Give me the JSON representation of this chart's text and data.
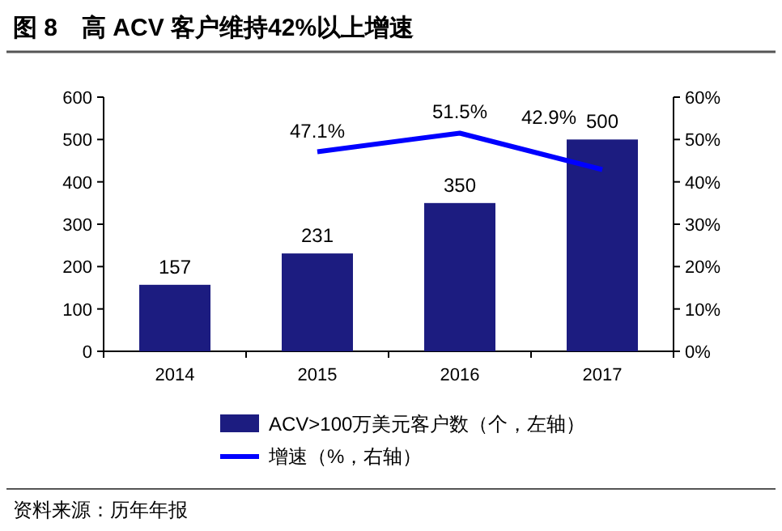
{
  "chart_data": {
    "type": "bar",
    "title": "图 8　高 ACV 客户维持42%以上增速",
    "categories": [
      "2014",
      "2015",
      "2016",
      "2017"
    ],
    "series": [
      {
        "name": "ACV>100万美元客户数（个，左轴）",
        "color": "#1c1c80",
        "values": [
          157,
          231,
          350,
          500
        ],
        "value_labels": [
          "157",
          "231",
          "350",
          "500"
        ]
      },
      {
        "name": "增速（%，右轴）",
        "type": "line",
        "axis": "y2",
        "color": "#0000ff",
        "values": [
          null,
          47.1,
          51.5,
          42.9
        ],
        "value_labels": [
          null,
          "47.1%",
          "51.5%",
          "42.9%"
        ]
      }
    ],
    "ylim": [
      0,
      600
    ],
    "yticks": [
      0,
      100,
      200,
      300,
      400,
      500,
      600
    ],
    "y2lim": [
      0,
      60
    ],
    "y2ticks": [
      {
        "value": 0,
        "label": "0%"
      },
      {
        "value": 10,
        "label": "10%"
      },
      {
        "value": 20,
        "label": "20%"
      },
      {
        "value": 30,
        "label": "30%"
      },
      {
        "value": 40,
        "label": "40%"
      },
      {
        "value": 50,
        "label": "50%"
      },
      {
        "value": 60,
        "label": "60%"
      }
    ],
    "legend": "bottom",
    "annotations": [
      "资料来源：历年年报"
    ]
  }
}
